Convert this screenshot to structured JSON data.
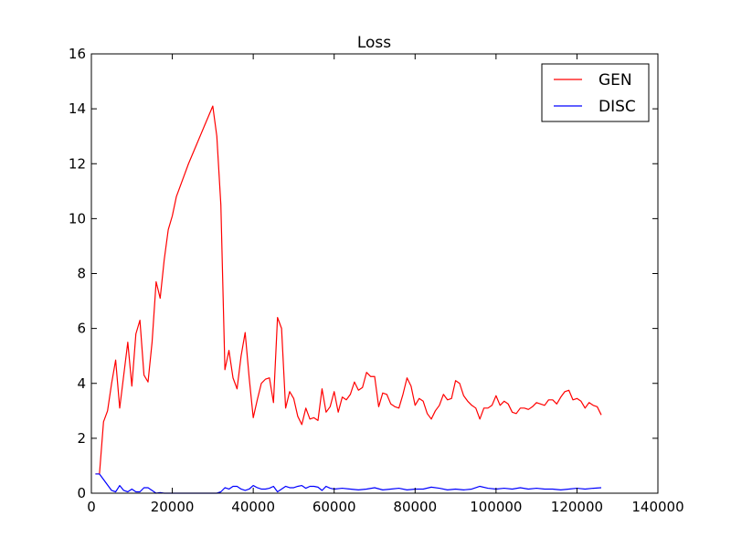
{
  "chart_data": {
    "type": "line",
    "title": "Loss",
    "xlabel": "",
    "ylabel": "",
    "xlim": [
      0,
      140000
    ],
    "ylim": [
      0,
      16
    ],
    "xticks": [
      0,
      20000,
      40000,
      60000,
      80000,
      100000,
      120000,
      140000
    ],
    "xtick_labels": [
      "0",
      "20000",
      "40000",
      "60000",
      "80000",
      "100000",
      "120000",
      "140000"
    ],
    "yticks": [
      0,
      2,
      4,
      6,
      8,
      10,
      12,
      14,
      16
    ],
    "ytick_labels": [
      "0",
      "2",
      "4",
      "6",
      "8",
      "10",
      "12",
      "14",
      "16"
    ],
    "grid": false,
    "legend": {
      "position": "top-right"
    },
    "series": [
      {
        "name": "GEN",
        "color": "#ff0000",
        "points": [
          [
            1000,
            0.7
          ],
          [
            2000,
            0.7
          ],
          [
            3000,
            2.6
          ],
          [
            4000,
            3.0
          ],
          [
            5000,
            4.0
          ],
          [
            6000,
            4.85
          ],
          [
            7000,
            3.1
          ],
          [
            8000,
            4.3
          ],
          [
            9000,
            5.5
          ],
          [
            10000,
            3.9
          ],
          [
            11000,
            5.8
          ],
          [
            12000,
            6.3
          ],
          [
            13000,
            4.3
          ],
          [
            14000,
            4.05
          ],
          [
            15000,
            5.5
          ],
          [
            16000,
            7.7
          ],
          [
            17000,
            7.1
          ],
          [
            18000,
            8.5
          ],
          [
            19000,
            9.6
          ],
          [
            20000,
            10.1
          ],
          [
            21000,
            10.8
          ],
          [
            22000,
            11.2
          ],
          [
            23000,
            11.6
          ],
          [
            24000,
            12.0
          ],
          [
            25000,
            12.35
          ],
          [
            26000,
            12.7
          ],
          [
            27000,
            13.05
          ],
          [
            28000,
            13.4
          ],
          [
            29000,
            13.75
          ],
          [
            30000,
            14.1
          ],
          [
            31000,
            13.0
          ],
          [
            32000,
            10.5
          ],
          [
            33000,
            4.5
          ],
          [
            34000,
            5.2
          ],
          [
            35000,
            4.2
          ],
          [
            36000,
            3.8
          ],
          [
            37000,
            5.0
          ],
          [
            38000,
            5.85
          ],
          [
            39000,
            4.2
          ],
          [
            40000,
            2.75
          ],
          [
            41000,
            3.4
          ],
          [
            42000,
            4.0
          ],
          [
            43000,
            4.15
          ],
          [
            44000,
            4.2
          ],
          [
            45000,
            3.3
          ],
          [
            46000,
            6.4
          ],
          [
            47000,
            6.0
          ],
          [
            48000,
            3.1
          ],
          [
            49000,
            3.7
          ],
          [
            50000,
            3.45
          ],
          [
            51000,
            2.8
          ],
          [
            52000,
            2.5
          ],
          [
            53000,
            3.1
          ],
          [
            54000,
            2.7
          ],
          [
            55000,
            2.75
          ],
          [
            56000,
            2.65
          ],
          [
            57000,
            3.8
          ],
          [
            58000,
            2.95
          ],
          [
            59000,
            3.15
          ],
          [
            60000,
            3.7
          ],
          [
            61000,
            2.95
          ],
          [
            62000,
            3.5
          ],
          [
            63000,
            3.4
          ],
          [
            64000,
            3.6
          ],
          [
            65000,
            4.05
          ],
          [
            66000,
            3.75
          ],
          [
            67000,
            3.85
          ],
          [
            68000,
            4.4
          ],
          [
            69000,
            4.25
          ],
          [
            70000,
            4.25
          ],
          [
            71000,
            3.15
          ],
          [
            72000,
            3.65
          ],
          [
            73000,
            3.6
          ],
          [
            74000,
            3.25
          ],
          [
            75000,
            3.15
          ],
          [
            76000,
            3.1
          ],
          [
            77000,
            3.6
          ],
          [
            78000,
            4.2
          ],
          [
            79000,
            3.9
          ],
          [
            80000,
            3.2
          ],
          [
            81000,
            3.45
          ],
          [
            82000,
            3.35
          ],
          [
            83000,
            2.9
          ],
          [
            84000,
            2.7
          ],
          [
            85000,
            3.0
          ],
          [
            86000,
            3.2
          ],
          [
            87000,
            3.6
          ],
          [
            88000,
            3.4
          ],
          [
            89000,
            3.45
          ],
          [
            90000,
            4.1
          ],
          [
            91000,
            4.0
          ],
          [
            92000,
            3.55
          ],
          [
            93000,
            3.35
          ],
          [
            94000,
            3.2
          ],
          [
            95000,
            3.1
          ],
          [
            96000,
            2.7
          ],
          [
            97000,
            3.1
          ],
          [
            98000,
            3.1
          ],
          [
            99000,
            3.2
          ],
          [
            100000,
            3.55
          ],
          [
            101000,
            3.2
          ],
          [
            102000,
            3.35
          ],
          [
            103000,
            3.25
          ],
          [
            104000,
            2.95
          ],
          [
            105000,
            2.9
          ],
          [
            106000,
            3.1
          ],
          [
            107000,
            3.1
          ],
          [
            108000,
            3.05
          ],
          [
            109000,
            3.15
          ],
          [
            110000,
            3.3
          ],
          [
            111000,
            3.25
          ],
          [
            112000,
            3.2
          ],
          [
            113000,
            3.4
          ],
          [
            114000,
            3.4
          ],
          [
            115000,
            3.25
          ],
          [
            116000,
            3.5
          ],
          [
            117000,
            3.7
          ],
          [
            118000,
            3.75
          ],
          [
            119000,
            3.4
          ],
          [
            120000,
            3.45
          ],
          [
            121000,
            3.35
          ],
          [
            122000,
            3.1
          ],
          [
            123000,
            3.3
          ],
          [
            124000,
            3.2
          ],
          [
            125000,
            3.15
          ],
          [
            126000,
            2.85
          ]
        ]
      },
      {
        "name": "DISC",
        "color": "#0000ff",
        "points": [
          [
            1000,
            0.7
          ],
          [
            2000,
            0.7
          ],
          [
            3000,
            0.5
          ],
          [
            4000,
            0.3
          ],
          [
            5000,
            0.1
          ],
          [
            6000,
            0.05
          ],
          [
            7000,
            0.28
          ],
          [
            8000,
            0.1
          ],
          [
            9000,
            0.05
          ],
          [
            10000,
            0.15
          ],
          [
            11000,
            0.05
          ],
          [
            12000,
            0.05
          ],
          [
            13000,
            0.2
          ],
          [
            14000,
            0.2
          ],
          [
            15000,
            0.1
          ],
          [
            16000,
            0.0
          ],
          [
            17000,
            0.02
          ],
          [
            18000,
            0.0
          ],
          [
            20000,
            0.0
          ],
          [
            24000,
            0.0
          ],
          [
            28000,
            0.0
          ],
          [
            31000,
            0.0
          ],
          [
            32000,
            0.05
          ],
          [
            33000,
            0.2
          ],
          [
            34000,
            0.15
          ],
          [
            35000,
            0.25
          ],
          [
            36000,
            0.25
          ],
          [
            37000,
            0.15
          ],
          [
            38000,
            0.1
          ],
          [
            39000,
            0.15
          ],
          [
            40000,
            0.28
          ],
          [
            41000,
            0.2
          ],
          [
            42000,
            0.15
          ],
          [
            43000,
            0.15
          ],
          [
            44000,
            0.18
          ],
          [
            45000,
            0.25
          ],
          [
            46000,
            0.05
          ],
          [
            47000,
            0.15
          ],
          [
            48000,
            0.25
          ],
          [
            49000,
            0.2
          ],
          [
            50000,
            0.2
          ],
          [
            51000,
            0.25
          ],
          [
            52000,
            0.28
          ],
          [
            53000,
            0.18
          ],
          [
            54000,
            0.25
          ],
          [
            55000,
            0.25
          ],
          [
            56000,
            0.22
          ],
          [
            57000,
            0.1
          ],
          [
            58000,
            0.25
          ],
          [
            59000,
            0.18
          ],
          [
            60000,
            0.15
          ],
          [
            62000,
            0.18
          ],
          [
            64000,
            0.15
          ],
          [
            66000,
            0.12
          ],
          [
            68000,
            0.15
          ],
          [
            70000,
            0.2
          ],
          [
            72000,
            0.12
          ],
          [
            74000,
            0.15
          ],
          [
            76000,
            0.18
          ],
          [
            78000,
            0.12
          ],
          [
            80000,
            0.15
          ],
          [
            82000,
            0.15
          ],
          [
            84000,
            0.22
          ],
          [
            86000,
            0.18
          ],
          [
            88000,
            0.12
          ],
          [
            90000,
            0.15
          ],
          [
            92000,
            0.12
          ],
          [
            94000,
            0.15
          ],
          [
            96000,
            0.25
          ],
          [
            98000,
            0.18
          ],
          [
            100000,
            0.15
          ],
          [
            102000,
            0.18
          ],
          [
            104000,
            0.15
          ],
          [
            106000,
            0.2
          ],
          [
            108000,
            0.15
          ],
          [
            110000,
            0.18
          ],
          [
            112000,
            0.15
          ],
          [
            114000,
            0.15
          ],
          [
            116000,
            0.12
          ],
          [
            118000,
            0.15
          ],
          [
            120000,
            0.18
          ],
          [
            122000,
            0.15
          ],
          [
            124000,
            0.18
          ],
          [
            126000,
            0.2
          ]
        ]
      }
    ]
  }
}
